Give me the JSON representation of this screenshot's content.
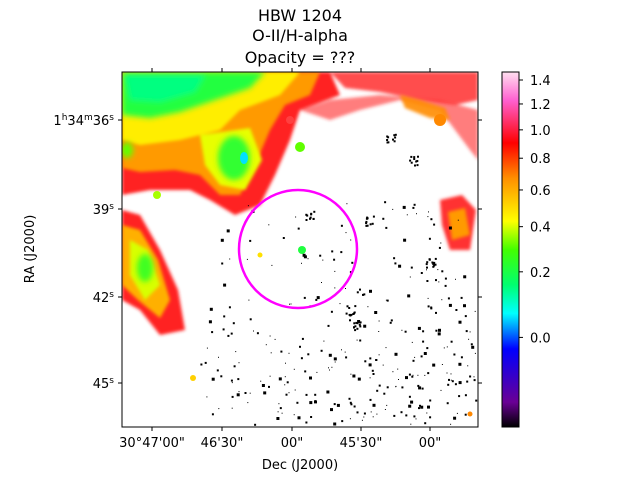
{
  "chart_data": {
    "type": "heatmap",
    "title": [
      "HBW 1204",
      "O-II/H-alpha",
      "Opacity = ???"
    ],
    "xlabel": "Dec (J2000)",
    "ylabel": "RA (J2000)",
    "x_ticks": [
      "30°47'00\"",
      "46'30\"",
      "00\"",
      "45'30\"",
      "00\""
    ],
    "y_ticks": [
      {
        "major": "1",
        "major_unit": "h",
        "minor": "34",
        "minor_unit": "m",
        "value": "36",
        "unit": "s"
      },
      {
        "major": "",
        "major_unit": "",
        "minor": "",
        "minor_unit": "",
        "value": "39",
        "unit": "s"
      },
      {
        "major": "",
        "major_unit": "",
        "minor": "",
        "minor_unit": "",
        "value": "42",
        "unit": "s"
      },
      {
        "major": "",
        "major_unit": "",
        "minor": "",
        "minor_unit": "",
        "value": "45",
        "unit": "s"
      }
    ],
    "colorbar": {
      "colormap": "gist_ncar-like (black-purple-blue-cyan-green-yellow-red-pink-white)",
      "range": [
        -0.1,
        1.47
      ],
      "scale": "nonlinear (sqrt-like)",
      "ticks": [
        0.0,
        0.2,
        0.4,
        0.6,
        0.8,
        1.0,
        1.2,
        1.4
      ],
      "tick_labels": [
        "0.0",
        "0.2",
        "0.4",
        "0.6",
        "0.8",
        "1.0",
        "1.2",
        "1.4"
      ]
    },
    "overlays": [
      {
        "shape": "circle",
        "color": "#ff00ff",
        "description": "aperture around central star"
      }
    ],
    "image_description": "Ratio map: bright green/yellow/red nebular emission in upper-left and along left edge, white (masked) interior, scattered black noise pixels in lower right."
  }
}
